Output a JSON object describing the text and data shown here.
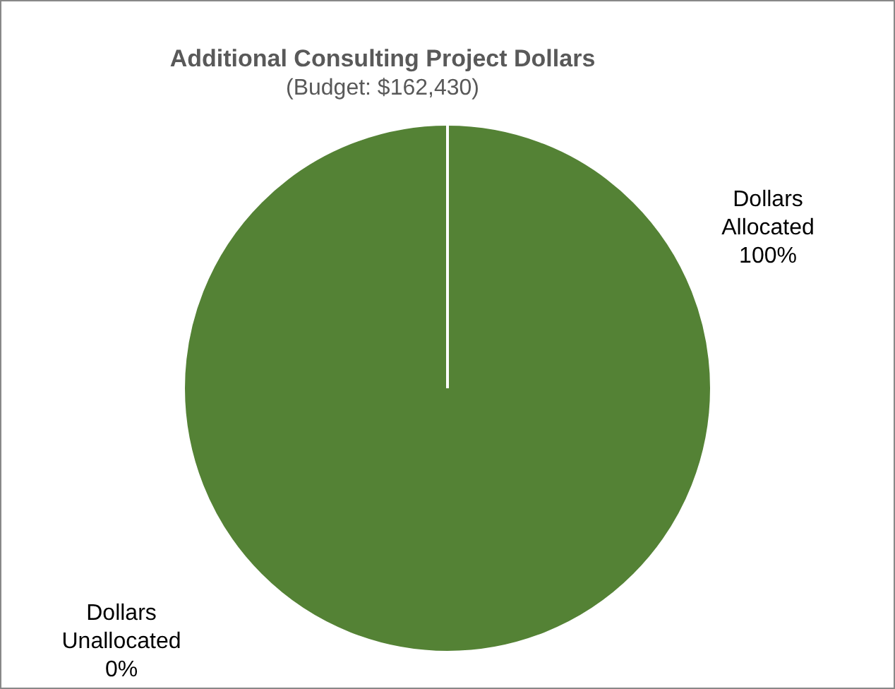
{
  "chart_data": {
    "type": "pie",
    "title": "Additional Consulting Project Dollars",
    "subtitle": "(Budget: $162,430)",
    "categories": [
      "Dollars Allocated",
      "Dollars Unallocated"
    ],
    "values": [
      100,
      0
    ],
    "colors": [
      "#548235",
      "#4472c4"
    ],
    "value_labels": [
      "100%",
      "0%"
    ]
  }
}
